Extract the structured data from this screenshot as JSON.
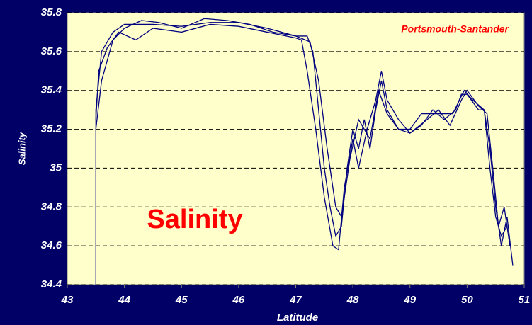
{
  "chart_data": {
    "type": "line",
    "xlabel": "Latitude",
    "ylabel": "Salinity",
    "annotations": [
      "Portsmouth-Santander",
      "Salinity"
    ],
    "xlim": [
      43,
      51
    ],
    "xticks": [
      43,
      44,
      45,
      46,
      47,
      48,
      49,
      50,
      51
    ],
    "ylim": [
      34.4,
      35.8
    ],
    "yticks": [
      34.4,
      34.6,
      34.8,
      35,
      35.2,
      35.4,
      35.6,
      35.8
    ],
    "grid": true,
    "series": [
      {
        "color": "#000080",
        "x": [
          43.5,
          43.5,
          43.6,
          43.8,
          44,
          44.5,
          45,
          45.5,
          46,
          46.5,
          47,
          47.2,
          47.3,
          47.4,
          47.5,
          47.6,
          47.7,
          47.8,
          47.9,
          48,
          48.1,
          48.2,
          48.3,
          48.4,
          48.5,
          48.6,
          48.7,
          48.8,
          49,
          49.2,
          49.4,
          49.6,
          49.8,
          49.9,
          50,
          50.2,
          50.3,
          50.4,
          50.5,
          50.6,
          50.7,
          50.8
        ],
        "values": [
          34.4,
          35.3,
          35.6,
          35.7,
          35.74,
          35.74,
          35.73,
          35.75,
          35.75,
          35.72,
          35.68,
          35.68,
          35.6,
          35.3,
          35.0,
          34.8,
          34.65,
          34.7,
          35.0,
          35.2,
          35.1,
          35.25,
          35.1,
          35.3,
          35.45,
          35.3,
          35.25,
          35.2,
          35.18,
          35.22,
          35.3,
          35.25,
          35.3,
          35.38,
          35.38,
          35.3,
          35.3,
          35.1,
          34.8,
          34.6,
          34.75,
          34.5
        ]
      },
      {
        "color": "#000080",
        "x": [
          43.5,
          43.55,
          43.7,
          43.9,
          44.2,
          44.5,
          45,
          45.5,
          46,
          46.5,
          47,
          47.1,
          47.2,
          47.35,
          47.5,
          47.65,
          47.75,
          47.85,
          48,
          48.1,
          48.25,
          48.4,
          48.5,
          48.6,
          48.8,
          49,
          49.3,
          49.5,
          49.7,
          49.9,
          50,
          50.2,
          50.35,
          50.45,
          50.55,
          50.65,
          50.75
        ],
        "values": [
          35.25,
          35.5,
          35.62,
          35.7,
          35.66,
          35.72,
          35.7,
          35.74,
          35.73,
          35.7,
          35.67,
          35.66,
          35.5,
          35.2,
          34.85,
          34.6,
          34.58,
          34.9,
          35.15,
          35.0,
          35.2,
          35.35,
          35.5,
          35.35,
          35.25,
          35.18,
          35.25,
          35.3,
          35.22,
          35.35,
          35.4,
          35.32,
          35.28,
          35.0,
          34.7,
          34.8,
          34.6
        ]
      },
      {
        "color": "#000080",
        "x": [
          43.5,
          43.6,
          43.8,
          44,
          44.3,
          44.6,
          45,
          45.4,
          45.8,
          46.2,
          46.6,
          47,
          47.25,
          47.4,
          47.55,
          47.7,
          47.8,
          47.95,
          48.1,
          48.3,
          48.45,
          48.6,
          48.8,
          49,
          49.2,
          49.5,
          49.75,
          49.95,
          50.1,
          50.3,
          50.4,
          50.5,
          50.6,
          50.7
        ],
        "values": [
          35.2,
          35.45,
          35.66,
          35.72,
          35.76,
          35.75,
          35.72,
          35.77,
          35.76,
          35.74,
          35.7,
          35.68,
          35.65,
          35.45,
          35.1,
          34.8,
          34.75,
          35.05,
          35.25,
          35.15,
          35.4,
          35.28,
          35.2,
          35.2,
          35.28,
          35.28,
          35.28,
          35.4,
          35.35,
          35.3,
          35.0,
          34.75,
          34.65,
          34.7
        ]
      }
    ]
  }
}
